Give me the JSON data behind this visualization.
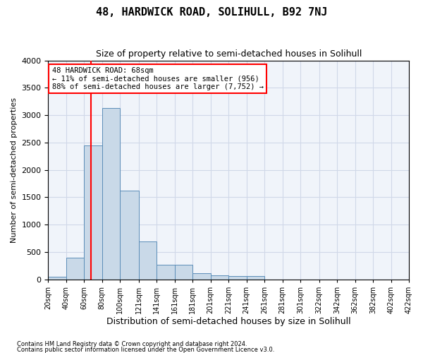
{
  "title": "48, HARDWICK ROAD, SOLIHULL, B92 7NJ",
  "subtitle": "Size of property relative to semi-detached houses in Solihull",
  "xlabel": "Distribution of semi-detached houses by size in Solihull",
  "ylabel": "Number of semi-detached properties",
  "footer1": "Contains HM Land Registry data © Crown copyright and database right 2024.",
  "footer2": "Contains public sector information licensed under the Open Government Licence v3.0.",
  "annotation_title": "48 HARDWICK ROAD: 68sqm",
  "annotation_line1": "← 11% of semi-detached houses are smaller (956)",
  "annotation_line2": "88% of semi-detached houses are larger (7,752) →",
  "property_size": 68,
  "bin_edges": [
    20,
    40,
    60,
    80,
    100,
    121,
    141,
    161,
    181,
    201,
    221,
    241,
    261,
    281,
    301,
    322,
    342,
    362,
    382,
    402,
    422
  ],
  "bar_heights": [
    50,
    400,
    2450,
    3130,
    1620,
    690,
    270,
    270,
    115,
    70,
    60,
    55,
    0,
    0,
    0,
    0,
    0,
    0,
    0,
    0
  ],
  "bar_color": "#c9d9e8",
  "bar_edge_color": "#5b8db8",
  "vline_color": "red",
  "grid_color": "#d0d8e8",
  "bg_color": "#f0f4fa",
  "annotation_box_color": "white",
  "annotation_box_edge": "red",
  "ylim": [
    0,
    4000
  ],
  "yticks": [
    0,
    500,
    1000,
    1500,
    2000,
    2500,
    3000,
    3500,
    4000
  ]
}
